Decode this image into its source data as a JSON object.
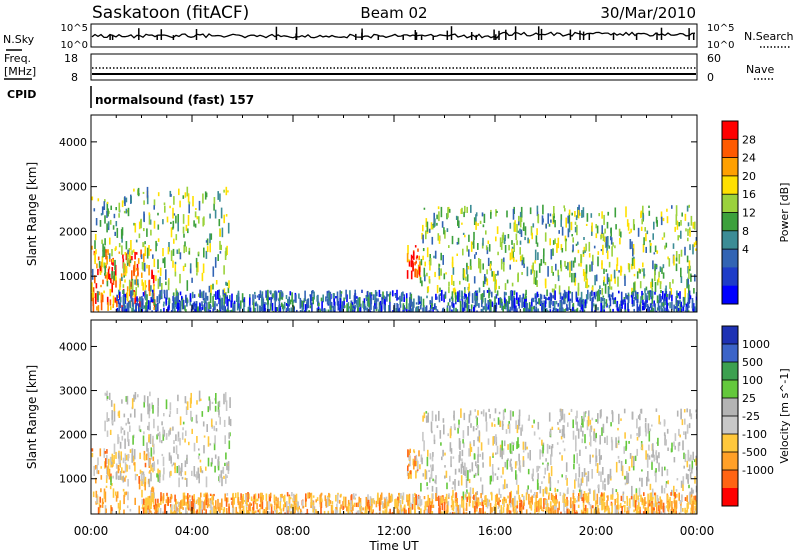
{
  "header": {
    "station": "Saskatoon (fitACF)",
    "beam": "Beam 02",
    "date": "30/Mar/2010"
  },
  "nsky_panel": {
    "left_label": "N.Sky",
    "left_ticks": [
      "10^5",
      "10^0"
    ],
    "right_ticks": [
      "10^5",
      "10^0"
    ],
    "right_label": "N.Search"
  },
  "freq_panel": {
    "label_line1": "Freq.",
    "label_line2": "[MHz]",
    "left_ticks": [
      "18",
      "8"
    ],
    "right_ticks": [
      "60",
      "0"
    ],
    "right_label": "Nave"
  },
  "cpid": {
    "label": "CPID",
    "text": "normalsound (fast) 157"
  },
  "chart_data": [
    {
      "type": "heatmap",
      "parameter": "power",
      "ylabel": "Slant Range [km]",
      "yticks": [
        "1000",
        "2000",
        "3000",
        "4000"
      ],
      "ylim": [
        200,
        4600
      ],
      "xlim": [
        0,
        24
      ],
      "colorbar": {
        "label": "Power [dB]",
        "ticks": [
          "28",
          "24",
          "20",
          "16",
          "12",
          "8",
          "4"
        ],
        "colors": [
          "#ff0000",
          "#ff5a00",
          "#ffa000",
          "#ffe000",
          "#9bd23c",
          "#3ca03c",
          "#3c8c96",
          "#3264b4",
          "#1e3cc8",
          "#0000ff"
        ]
      },
      "features": [
        {
          "x": [
            0.0,
            2.5
          ],
          "y": [
            300,
            1700
          ],
          "level": "high"
        },
        {
          "x": [
            0.0,
            5.5
          ],
          "y": [
            600,
            3000
          ],
          "level": "medium"
        },
        {
          "x": [
            12.5,
            13.0
          ],
          "y": [
            1100,
            1700
          ],
          "level": "high"
        },
        {
          "x": [
            13.0,
            24.0
          ],
          "y": [
            700,
            2600
          ],
          "level": "medium"
        },
        {
          "x": [
            1.0,
            24.0
          ],
          "y": [
            200,
            700
          ],
          "level": "low"
        }
      ]
    },
    {
      "type": "heatmap",
      "parameter": "velocity",
      "ylabel": "Slant Range [km]",
      "yticks": [
        "1000",
        "2000",
        "3000",
        "4000"
      ],
      "ylim": [
        200,
        4600
      ],
      "xlim": [
        0,
        24
      ],
      "xticks": [
        "00:00",
        "04:00",
        "08:00",
        "12:00",
        "16:00",
        "20:00",
        "00:00"
      ],
      "xlabel": "Time UT",
      "colorbar": {
        "label": "Velocity [m s^-1]",
        "ticks": [
          "1000",
          "500",
          "100",
          "25",
          "-25",
          "-100",
          "-500",
          "-1000"
        ],
        "colors": [
          "#1e32b4",
          "#3c64c8",
          "#3ca050",
          "#64c83c",
          "#b4b4b4",
          "#c8c8c8",
          "#ffc83c",
          "#ffa028",
          "#ff6414",
          "#ff0000"
        ]
      },
      "features": [
        {
          "x": [
            0.0,
            2.5
          ],
          "y": [
            300,
            1700
          ],
          "level": "negative"
        },
        {
          "x": [
            0.5,
            5.5
          ],
          "y": [
            1000,
            3000
          ],
          "level": "near-zero"
        },
        {
          "x": [
            12.5,
            13.0
          ],
          "y": [
            1100,
            1700
          ],
          "level": "negative"
        },
        {
          "x": [
            13.0,
            24.0
          ],
          "y": [
            700,
            2600
          ],
          "level": "near-zero"
        },
        {
          "x": [
            2.0,
            24.0
          ],
          "y": [
            200,
            700
          ],
          "level": "negative"
        }
      ]
    }
  ]
}
